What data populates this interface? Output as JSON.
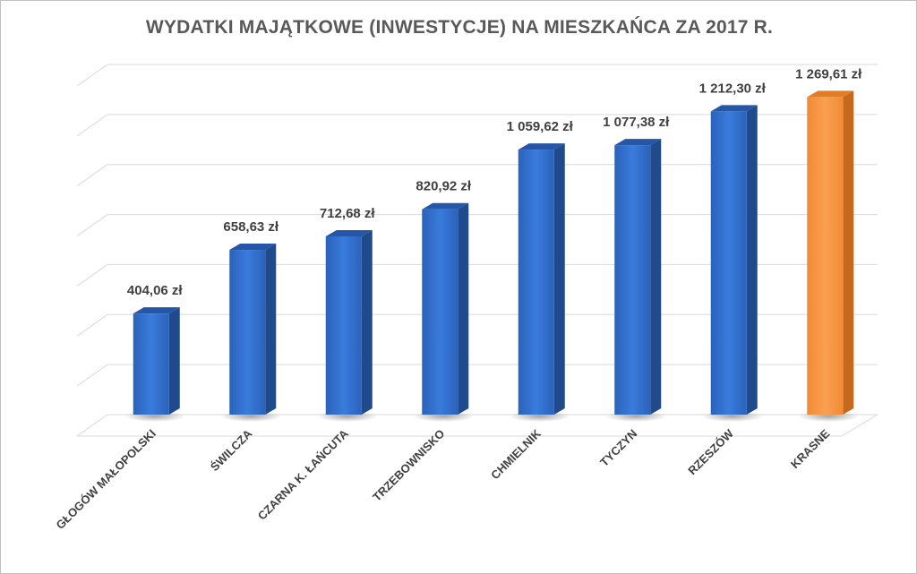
{
  "chart_data": {
    "type": "bar",
    "title": "WYDATKI MAJĄTKOWE (INWESTYCJE) NA MIESZKAŃCA ZA 2017 R.",
    "categories": [
      "GŁOGÓW MAŁOPOLSKI",
      "ŚWILCZA",
      "CZARNA K. ŁAŃCUTA",
      "TRZEBOWNISKO",
      "CHMIELNIK",
      "TYCZYN",
      "RZESZÓW",
      "KRASNE"
    ],
    "values": [
      404.06,
      658.63,
      712.68,
      820.92,
      1059.62,
      1077.38,
      1212.3,
      1269.61
    ],
    "data_labels": [
      "404,06 zł",
      "658,63 zł",
      "712,68 zł",
      "820,92 zł",
      "1 059,62 zł",
      "1 077,38 zł",
      "1 212,30 zł",
      "1 269,61 zł"
    ],
    "xlabel": "",
    "ylabel": "",
    "ylim": [
      0,
      1400
    ],
    "grid": true,
    "colors": [
      "#2e6fd0",
      "#2e6fd0",
      "#2e6fd0",
      "#2e6fd0",
      "#2e6fd0",
      "#2e6fd0",
      "#2e6fd0",
      "#f79646"
    ]
  }
}
